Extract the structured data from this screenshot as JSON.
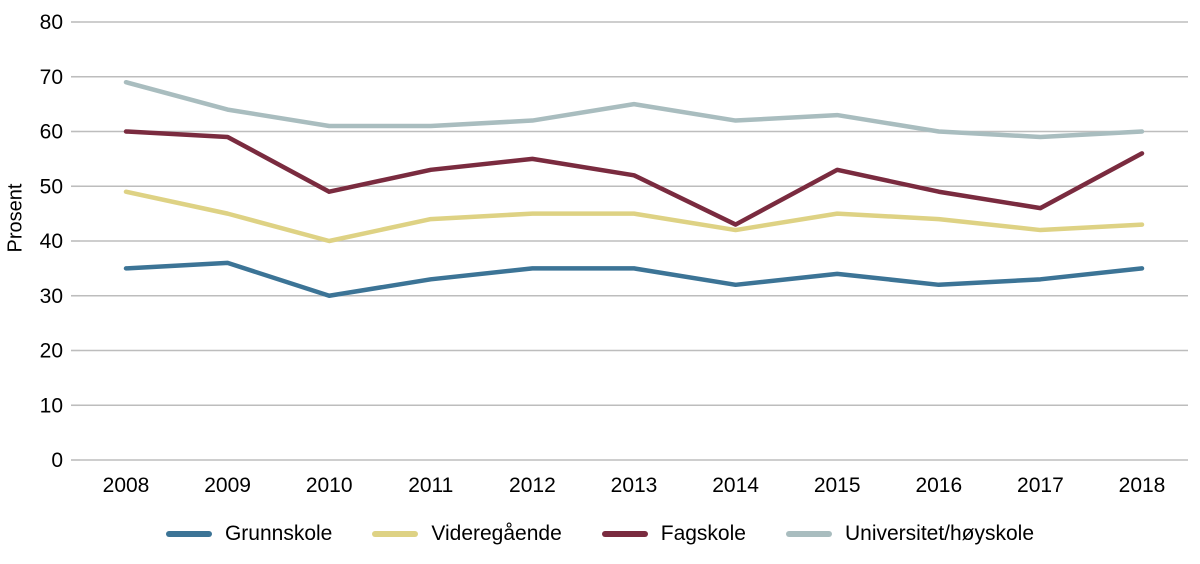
{
  "chart_data": {
    "type": "line",
    "title": "",
    "xlabel": "",
    "ylabel": "Prosent",
    "ylim": [
      0,
      80
    ],
    "ytick_step": 10,
    "grid": true,
    "grid_color": "#bdbdbd",
    "legend_position": "bottom",
    "categories": [
      "2008",
      "2009",
      "2010",
      "2011",
      "2012",
      "2013",
      "2014",
      "2015",
      "2016",
      "2017",
      "2018"
    ],
    "series": [
      {
        "name": "Grunnskole",
        "color": "#3C7496",
        "values": [
          35,
          36,
          30,
          33,
          35,
          35,
          32,
          34,
          32,
          33,
          35
        ]
      },
      {
        "name": "Videregående",
        "color": "#DED284",
        "values": [
          49,
          45,
          40,
          44,
          45,
          45,
          42,
          45,
          44,
          42,
          43
        ]
      },
      {
        "name": "Fagskole",
        "color": "#7A2B3F",
        "values": [
          60,
          59,
          49,
          53,
          55,
          52,
          43,
          53,
          49,
          46,
          56
        ]
      },
      {
        "name": "Universitet/høyskole",
        "color": "#A9BDBF",
        "values": [
          69,
          64,
          61,
          61,
          62,
          65,
          62,
          63,
          60,
          59,
          60
        ]
      }
    ]
  }
}
